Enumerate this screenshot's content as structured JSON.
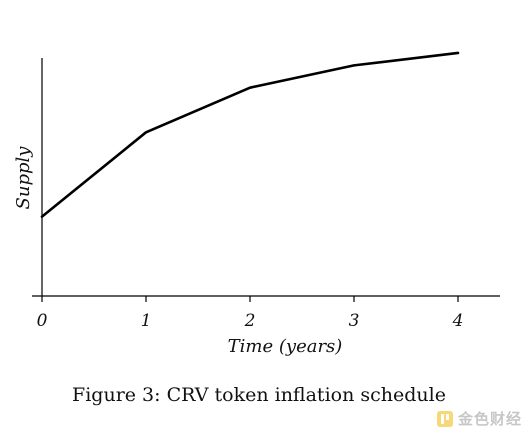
{
  "chart_data": {
    "type": "line",
    "title": "",
    "xlabel": "Time (years)",
    "ylabel": "Supply",
    "xlim": [
      0,
      4.4
    ],
    "ylim": [
      0,
      1
    ],
    "x_ticks": [
      "0",
      "1",
      "2",
      "3",
      "4"
    ],
    "y_ticks": [],
    "grid": false,
    "legend": "none",
    "series": [
      {
        "x": [
          0,
          1,
          2,
          3,
          4
        ],
        "y": [
          0.32,
          0.66,
          0.84,
          0.93,
          0.98
        ]
      }
    ],
    "line_color": "#000000"
  },
  "caption": "Figure 3: CRV token inflation schedule",
  "watermark": {
    "text": "金色财经",
    "icon": "golden-logo-icon",
    "color": "#f0b90b"
  }
}
